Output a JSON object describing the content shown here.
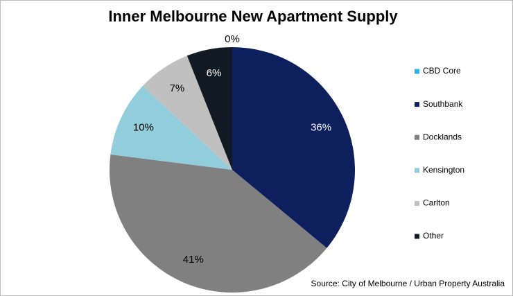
{
  "chart_data": {
    "type": "pie",
    "title": "Inner Melbourne New Apartment Supply",
    "source": "Source: City of Melbourne / Urban Property Australia",
    "categories": [
      "CBD Core",
      "Southbank",
      "Docklands",
      "Kensington",
      "Carlton",
      "Other"
    ],
    "values": [
      0,
      36,
      41,
      10,
      7,
      6
    ],
    "value_labels": [
      "0%",
      "36%",
      "41%",
      "10%",
      "7%",
      "6%"
    ],
    "colors": [
      "#29b6e0",
      "#0d1f5c",
      "#808080",
      "#92cddc",
      "#c0c0c0",
      "#111a24"
    ],
    "legend": "right"
  }
}
